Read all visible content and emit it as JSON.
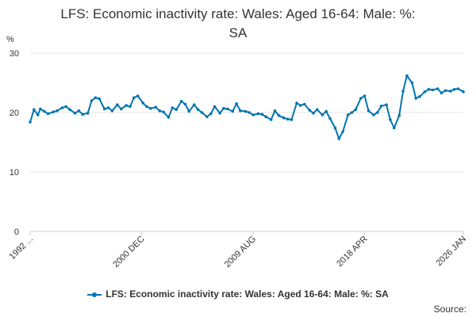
{
  "chart_data": {
    "type": "line",
    "title_line1": "LFS: Economic inactivity rate: Wales: Aged 16-64: Male: %:",
    "title_line2": "SA",
    "ylabel": "%",
    "ylim": [
      0,
      30
    ],
    "yticks": [
      "0",
      "10",
      "20",
      "30"
    ],
    "xlim": [
      1992.2,
      2026.0
    ],
    "xticks": [
      {
        "label": "1992 ...",
        "value": 1992.2
      },
      {
        "label": "2000 DEC",
        "value": 2000.9
      },
      {
        "label": "2009 AUG",
        "value": 2009.6
      },
      {
        "label": "2018 APR",
        "value": 2018.3
      },
      {
        "label": "2026 JAN",
        "value": 2026.0
      }
    ],
    "series": [
      {
        "name": "LFS: Economic inactivity rate: Wales: Aged 16-64: Male: %: SA",
        "color": "#0075b0",
        "x": [
          1992.2,
          1992.5,
          1992.8,
          1993.0,
          1993.3,
          1993.6,
          1994.0,
          1994.3,
          1994.7,
          1995.0,
          1995.3,
          1995.7,
          1996.0,
          1996.3,
          1996.7,
          1997.0,
          1997.3,
          1997.6,
          1998.0,
          1998.3,
          1998.6,
          1999.0,
          1999.3,
          1999.7,
          2000.0,
          2000.3,
          2000.6,
          2001.0,
          2001.3,
          2001.6,
          2002.0,
          2002.3,
          2002.6,
          2003.0,
          2003.3,
          2003.6,
          2004.0,
          2004.3,
          2004.6,
          2005.0,
          2005.3,
          2005.6,
          2006.0,
          2006.3,
          2006.6,
          2007.0,
          2007.3,
          2007.6,
          2008.0,
          2008.3,
          2008.6,
          2009.0,
          2009.3,
          2009.6,
          2010.0,
          2010.3,
          2010.6,
          2011.0,
          2011.3,
          2011.6,
          2012.0,
          2012.3,
          2012.6,
          2013.0,
          2013.3,
          2013.6,
          2014.0,
          2014.3,
          2014.6,
          2015.0,
          2015.3,
          2015.6,
          2016.0,
          2016.3,
          2016.6,
          2017.0,
          2017.3,
          2017.6,
          2018.0,
          2018.3,
          2018.6,
          2019.0,
          2019.3,
          2019.6,
          2020.0,
          2020.3,
          2020.6,
          2021.0,
          2021.3,
          2021.6,
          2022.0,
          2022.3,
          2022.6,
          2023.0,
          2023.3,
          2023.6,
          2024.0,
          2024.3,
          2024.6,
          2025.0,
          2025.3,
          2025.6,
          2026.0
        ],
        "values": [
          18.4,
          20.5,
          19.6,
          20.6,
          20.2,
          19.8,
          20.1,
          20.3,
          20.8,
          21.0,
          20.5,
          19.9,
          20.3,
          19.7,
          19.9,
          22.0,
          22.5,
          22.3,
          20.6,
          20.8,
          20.3,
          21.3,
          20.6,
          21.2,
          21.0,
          22.5,
          22.8,
          21.6,
          21.0,
          20.7,
          20.9,
          20.3,
          20.1,
          19.2,
          20.8,
          20.5,
          21.9,
          21.4,
          20.2,
          21.3,
          20.5,
          20.0,
          19.3,
          19.8,
          21.0,
          19.9,
          20.7,
          20.6,
          20.2,
          21.5,
          20.3,
          20.2,
          20.0,
          19.6,
          19.8,
          19.7,
          19.3,
          18.8,
          20.3,
          19.5,
          19.1,
          18.9,
          18.8,
          21.6,
          21.2,
          21.4,
          20.4,
          19.9,
          20.5,
          19.6,
          20.2,
          19.0,
          17.4,
          15.6,
          16.8,
          19.6,
          20.0,
          20.5,
          22.4,
          22.8,
          20.3,
          19.6,
          20.0,
          21.1,
          21.3,
          18.8,
          17.4,
          19.5,
          23.6,
          26.2,
          25.0,
          22.4,
          22.7,
          23.5,
          23.9,
          23.8,
          24.0,
          23.3,
          23.7,
          23.6,
          23.9,
          24.0,
          23.5
        ]
      }
    ],
    "legend_label": "LFS: Economic inactivity rate: Wales: Aged 16-64: Male: %: SA",
    "source_label": "Source:"
  }
}
